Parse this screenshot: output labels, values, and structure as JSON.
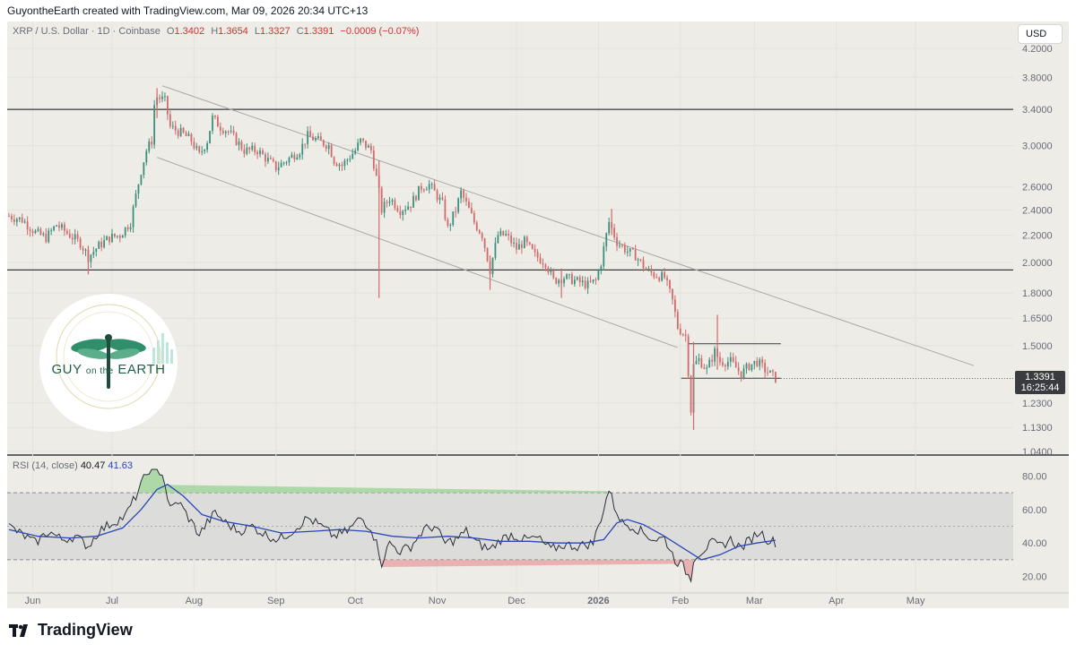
{
  "header": {
    "credit": "GuyontheEarth created with TradingView.com, Mar 09, 2026 20:34 UTC+13"
  },
  "legend": {
    "symbol": "XRP / U.S. Dollar · 1D · Coinbase",
    "o_label": "O",
    "o_value": "1.3402",
    "h_label": "H",
    "h_value": "1.3654",
    "l_label": "L",
    "l_value": "1.3327",
    "c_label": "C",
    "c_value": "1.3391",
    "change": "−0.0009 (−0.07%)"
  },
  "currency_button": "USD",
  "last_price": {
    "price": "1.3391",
    "countdown": "16:25:44"
  },
  "rsi_legend": {
    "label": "RSI (14, close)",
    "rsi": "40.47",
    "ma": "41.63"
  },
  "logo": {
    "word1": "GUY",
    "word2": "on the",
    "word3": "EARTH"
  },
  "brand": "TradingView",
  "colors": {
    "up": "#3d8f7d",
    "down": "#d36a6a",
    "rsi_line": "#2a2e39",
    "rsi_ma": "#2947b8",
    "background": "#edece7"
  },
  "chart_data": [
    {
      "type": "candlestick",
      "scale": "log",
      "ylim": [
        1.04,
        4.2
      ],
      "yticks": [
        "4.2000",
        "3.8000",
        "3.4000",
        "3.0000",
        "2.6000",
        "2.4000",
        "2.2000",
        "2.0000",
        "1.8000",
        "1.6500",
        "1.5000",
        "1.3391",
        "1.2300",
        "1.1300",
        "1.0400"
      ],
      "x_labels": [
        "Jun",
        "Jul",
        "Aug",
        "Sep",
        "Oct",
        "Nov",
        "Dec",
        "2026",
        "Feb",
        "Mar",
        "Apr",
        "May"
      ],
      "close_path": [
        [
          "2025-05-23",
          2.35
        ],
        [
          "2025-05-28",
          2.32
        ],
        [
          "2025-06-02",
          2.22
        ],
        [
          "2025-06-06",
          2.18
        ],
        [
          "2025-06-10",
          2.28
        ],
        [
          "2025-06-15",
          2.2
        ],
        [
          "2025-06-19",
          2.14
        ],
        [
          "2025-06-22",
          2.04
        ],
        [
          "2025-06-26",
          2.12
        ],
        [
          "2025-06-30",
          2.18
        ],
        [
          "2025-07-04",
          2.2
        ],
        [
          "2025-07-08",
          2.3
        ],
        [
          "2025-07-10",
          2.52
        ],
        [
          "2025-07-12",
          2.75
        ],
        [
          "2025-07-14",
          2.95
        ],
        [
          "2025-07-16",
          3.05
        ],
        [
          "2025-07-17",
          3.45
        ],
        [
          "2025-07-18",
          3.55
        ],
        [
          "2025-07-20",
          3.52
        ],
        [
          "2025-07-21",
          3.5
        ],
        [
          "2025-07-23",
          3.2
        ],
        [
          "2025-07-26",
          3.15
        ],
        [
          "2025-07-28",
          3.12
        ],
        [
          "2025-07-31",
          3.05
        ],
        [
          "2025-08-03",
          2.9
        ],
        [
          "2025-08-06",
          3.05
        ],
        [
          "2025-08-08",
          3.3
        ],
        [
          "2025-08-11",
          3.2
        ],
        [
          "2025-08-14",
          3.15
        ],
        [
          "2025-08-17",
          3.05
        ],
        [
          "2025-08-20",
          2.95
        ],
        [
          "2025-08-25",
          2.95
        ],
        [
          "2025-08-29",
          2.85
        ],
        [
          "2025-09-01",
          2.78
        ],
        [
          "2025-09-05",
          2.85
        ],
        [
          "2025-09-10",
          2.95
        ],
        [
          "2025-09-13",
          3.1
        ],
        [
          "2025-09-17",
          3.05
        ],
        [
          "2025-09-21",
          3.0
        ],
        [
          "2025-09-23",
          2.85
        ],
        [
          "2025-09-26",
          2.8
        ],
        [
          "2025-10-01",
          2.95
        ],
        [
          "2025-10-03",
          3.05
        ],
        [
          "2025-10-07",
          2.95
        ],
        [
          "2025-10-10",
          2.55
        ],
        [
          "2025-10-11",
          2.4
        ],
        [
          "2025-10-14",
          2.5
        ],
        [
          "2025-10-18",
          2.4
        ],
        [
          "2025-10-22",
          2.45
        ],
        [
          "2025-10-26",
          2.6
        ],
        [
          "2025-10-29",
          2.62
        ],
        [
          "2025-11-03",
          2.45
        ],
        [
          "2025-11-05",
          2.25
        ],
        [
          "2025-11-08",
          2.4
        ],
        [
          "2025-11-10",
          2.55
        ],
        [
          "2025-11-12",
          2.45
        ],
        [
          "2025-11-15",
          2.3
        ],
        [
          "2025-11-18",
          2.2
        ],
        [
          "2025-11-21",
          1.95
        ],
        [
          "2025-11-24",
          2.2
        ],
        [
          "2025-11-27",
          2.2
        ],
        [
          "2025-12-01",
          2.1
        ],
        [
          "2025-12-04",
          2.15
        ],
        [
          "2025-12-08",
          2.05
        ],
        [
          "2025-12-12",
          2.0
        ],
        [
          "2025-12-15",
          1.88
        ],
        [
          "2025-12-19",
          1.9
        ],
        [
          "2025-12-23",
          1.88
        ],
        [
          "2025-12-28",
          1.85
        ],
        [
          "2025-12-31",
          1.88
        ],
        [
          "2026-01-02",
          2.0
        ],
        [
          "2026-01-05",
          2.3
        ],
        [
          "2026-01-06",
          2.25
        ],
        [
          "2026-01-08",
          2.15
        ],
        [
          "2026-01-12",
          2.08
        ],
        [
          "2026-01-15",
          2.05
        ],
        [
          "2026-01-19",
          1.95
        ],
        [
          "2026-01-22",
          1.92
        ],
        [
          "2026-01-26",
          1.9
        ],
        [
          "2026-01-29",
          1.75
        ],
        [
          "2026-01-31",
          1.6
        ],
        [
          "2026-02-03",
          1.55
        ],
        [
          "2026-02-05",
          1.2
        ],
        [
          "2026-02-06",
          1.4
        ],
        [
          "2026-02-08",
          1.43
        ],
        [
          "2026-02-11",
          1.38
        ],
        [
          "2026-02-14",
          1.47
        ],
        [
          "2026-02-16",
          1.42
        ],
        [
          "2026-02-20",
          1.42
        ],
        [
          "2026-02-24",
          1.36
        ],
        [
          "2026-02-27",
          1.4
        ],
        [
          "2026-03-02",
          1.42
        ],
        [
          "2026-03-05",
          1.38
        ],
        [
          "2026-03-09",
          1.34
        ]
      ],
      "wicks": [
        {
          "date": "2025-06-22",
          "high": 2.12,
          "low": 1.92
        },
        {
          "date": "2025-07-18",
          "high": 3.66,
          "low": 3.3
        },
        {
          "date": "2025-10-10",
          "high": 2.85,
          "low": 1.77
        },
        {
          "date": "2025-11-21",
          "high": 2.05,
          "low": 1.82
        },
        {
          "date": "2025-12-18",
          "high": 1.96,
          "low": 1.77
        },
        {
          "date": "2026-01-06",
          "high": 2.41,
          "low": 2.2
        },
        {
          "date": "2026-02-06",
          "high": 1.52,
          "low": 1.12
        },
        {
          "date": "2026-02-15",
          "high": 1.67,
          "low": 1.38
        }
      ],
      "horizontal_levels": [
        3.4,
        1.95
      ],
      "range_box": {
        "from": "2026-02-04",
        "to": "2026-03-11",
        "upper": 1.51,
        "lower": 1.34
      },
      "channel": {
        "upper": [
          [
            "2025-07-20",
            3.69
          ],
          [
            "2026-05-23",
            1.4
          ]
        ],
        "lower": [
          [
            "2025-07-18",
            2.88
          ],
          [
            "2026-01-31",
            1.49
          ]
        ]
      },
      "last": 1.3391
    },
    {
      "type": "line",
      "ylim": [
        16,
        84
      ],
      "yticks": [
        "80.00",
        "60.00",
        "40.00",
        "20.00"
      ],
      "band": [
        30,
        70
      ],
      "midline": 50,
      "series": [
        {
          "values": [
            [
              "2025-05-23",
              50
            ],
            [
              "2025-05-28",
              45
            ],
            [
              "2025-06-02",
              40
            ],
            [
              "2025-06-07",
              47
            ],
            [
              "2025-06-12",
              42
            ],
            [
              "2025-06-17",
              44
            ],
            [
              "2025-06-22",
              38
            ],
            [
              "2025-06-26",
              47
            ],
            [
              "2025-07-01",
              52
            ],
            [
              "2025-07-06",
              56
            ],
            [
              "2025-07-10",
              68
            ],
            [
              "2025-07-13",
              78
            ],
            [
              "2025-07-15",
              84
            ],
            [
              "2025-07-18",
              84
            ],
            [
              "2025-07-20",
              82
            ],
            [
              "2025-07-23",
              60
            ],
            [
              "2025-07-26",
              65
            ],
            [
              "2025-07-30",
              55
            ],
            [
              "2025-08-03",
              45
            ],
            [
              "2025-08-06",
              52
            ],
            [
              "2025-08-09",
              58
            ],
            [
              "2025-08-13",
              52
            ],
            [
              "2025-08-18",
              47
            ],
            [
              "2025-08-23",
              50
            ],
            [
              "2025-08-28",
              45
            ],
            [
              "2025-09-02",
              42
            ],
            [
              "2025-09-07",
              47
            ],
            [
              "2025-09-13",
              55
            ],
            [
              "2025-09-18",
              50
            ],
            [
              "2025-09-23",
              44
            ],
            [
              "2025-09-28",
              47
            ],
            [
              "2025-10-03",
              55
            ],
            [
              "2025-10-07",
              49
            ],
            [
              "2025-10-10",
              35
            ],
            [
              "2025-10-11",
              28
            ],
            [
              "2025-10-14",
              40
            ],
            [
              "2025-10-18",
              35
            ],
            [
              "2025-10-22",
              38
            ],
            [
              "2025-10-27",
              48
            ],
            [
              "2025-10-31",
              50
            ],
            [
              "2025-11-04",
              40
            ],
            [
              "2025-11-08",
              42
            ],
            [
              "2025-11-12",
              47
            ],
            [
              "2025-11-16",
              40
            ],
            [
              "2025-11-21",
              36
            ],
            [
              "2025-11-25",
              42
            ],
            [
              "2025-11-29",
              45
            ],
            [
              "2025-12-04",
              42
            ],
            [
              "2025-12-09",
              43
            ],
            [
              "2025-12-14",
              36
            ],
            [
              "2025-12-19",
              39
            ],
            [
              "2025-12-24",
              38
            ],
            [
              "2025-12-30",
              40
            ],
            [
              "2026-01-02",
              55
            ],
            [
              "2026-01-05",
              72
            ],
            [
              "2026-01-07",
              62
            ],
            [
              "2026-01-10",
              52
            ],
            [
              "2026-01-14",
              50
            ],
            [
              "2026-01-18",
              46
            ],
            [
              "2026-01-22",
              42
            ],
            [
              "2026-01-26",
              43
            ],
            [
              "2026-01-30",
              30
            ],
            [
              "2026-02-02",
              26
            ],
            [
              "2026-02-05",
              18
            ],
            [
              "2026-02-06",
              31
            ],
            [
              "2026-02-09",
              35
            ],
            [
              "2026-02-13",
              40
            ],
            [
              "2026-02-16",
              38
            ],
            [
              "2026-02-20",
              42
            ],
            [
              "2026-02-24",
              37
            ],
            [
              "2026-02-28",
              43
            ],
            [
              "2026-03-03",
              47
            ],
            [
              "2026-03-06",
              42
            ],
            [
              "2026-03-09",
              40.47
            ]
          ]
        },
        {
          "values": [
            [
              "2025-05-23",
              48
            ],
            [
              "2025-06-03",
              44
            ],
            [
              "2025-06-15",
              43
            ],
            [
              "2025-06-25",
              44
            ],
            [
              "2025-07-05",
              49
            ],
            [
              "2025-07-12",
              60
            ],
            [
              "2025-07-18",
              72
            ],
            [
              "2025-07-22",
              75
            ],
            [
              "2025-07-28",
              68
            ],
            [
              "2025-08-04",
              57
            ],
            [
              "2025-08-12",
              53
            ],
            [
              "2025-08-23",
              50
            ],
            [
              "2025-09-03",
              46
            ],
            [
              "2025-09-15",
              47
            ],
            [
              "2025-09-25",
              48
            ],
            [
              "2025-10-05",
              47
            ],
            [
              "2025-10-15",
              44
            ],
            [
              "2025-10-25",
              43
            ],
            [
              "2025-11-05",
              44
            ],
            [
              "2025-11-15",
              43
            ],
            [
              "2025-11-25",
              41
            ],
            [
              "2025-12-06",
              41
            ],
            [
              "2025-12-16",
              40
            ],
            [
              "2025-12-27",
              40
            ],
            [
              "2026-01-03",
              42
            ],
            [
              "2026-01-08",
              52
            ],
            [
              "2026-01-12",
              54
            ],
            [
              "2026-01-18",
              51
            ],
            [
              "2026-01-26",
              44
            ],
            [
              "2026-02-02",
              37
            ],
            [
              "2026-02-09",
              30
            ],
            [
              "2026-02-16",
              33
            ],
            [
              "2026-02-23",
              38
            ],
            [
              "2026-03-02",
              40
            ],
            [
              "2026-03-09",
              41.63
            ]
          ]
        }
      ]
    }
  ]
}
